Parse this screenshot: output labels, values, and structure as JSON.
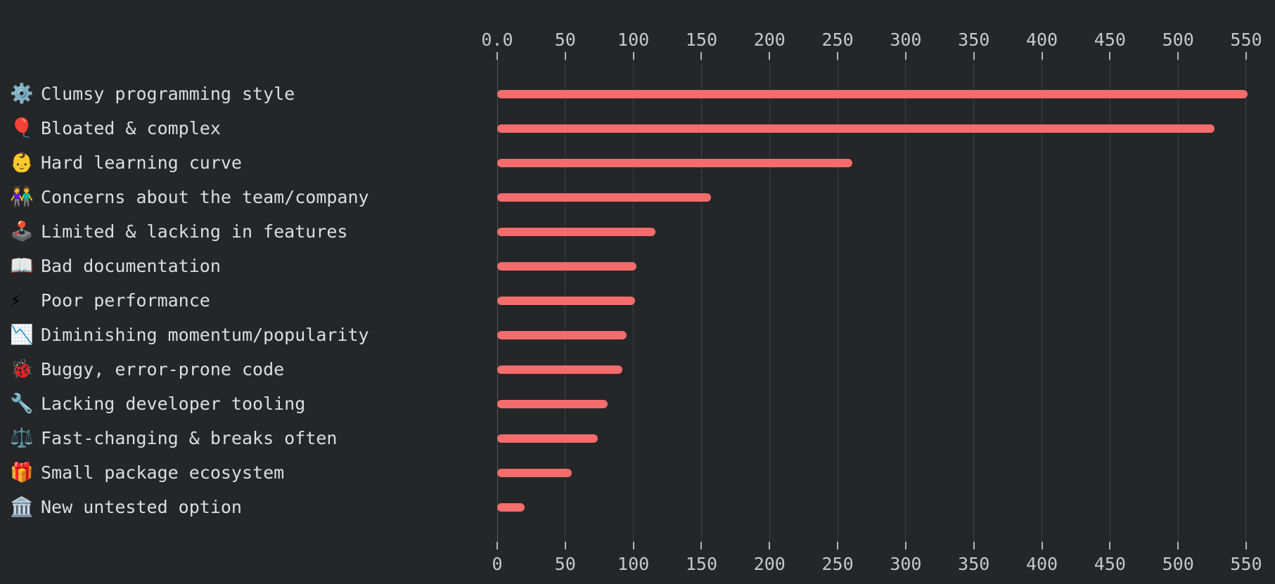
{
  "chart_data": {
    "type": "bar",
    "orientation": "horizontal",
    "title": "",
    "xlabel": "",
    "ylabel": "",
    "legend": "none",
    "grid": "vertical-gridlines-only",
    "xlim": [
      0,
      573
    ],
    "axis": {
      "tick_values": [
        0,
        50,
        100,
        150,
        200,
        250,
        300,
        350,
        400,
        450,
        500,
        550
      ],
      "top_labels": [
        "0.0",
        "50",
        "100",
        "150",
        "200",
        "250",
        "300",
        "350",
        "400",
        "450",
        "500",
        "550"
      ],
      "bottom_labels": [
        "0",
        "50",
        "100",
        "150",
        "200",
        "250",
        "300",
        "350",
        "400",
        "450",
        "500",
        "550"
      ]
    },
    "categories": [
      "Clumsy programming style",
      "Bloated & complex",
      "Hard learning curve",
      "Concerns about the team/company",
      "Limited & lacking in features",
      "Bad documentation",
      "Poor performance",
      "Diminishing momentum/popularity",
      "Buggy, error-prone code",
      "Lacking developer tooling",
      "Fast-changing & breaks often",
      "Small package ecosystem",
      "New untested option"
    ],
    "icons": [
      {
        "name": "gear-icon",
        "char": "⚙️"
      },
      {
        "name": "balloon-icon",
        "char": "🎈"
      },
      {
        "name": "baby-icon",
        "char": "👶"
      },
      {
        "name": "couple-icon",
        "char": "👫"
      },
      {
        "name": "joystick-icon",
        "char": "🕹️"
      },
      {
        "name": "open-book-icon",
        "char": "📖"
      },
      {
        "name": "lightning-icon",
        "char": "⚡"
      },
      {
        "name": "chart-decreasing-icon",
        "char": "📉"
      },
      {
        "name": "lady-beetle-icon",
        "char": "🐞"
      },
      {
        "name": "wrench-icon",
        "char": "🔧"
      },
      {
        "name": "balance-scale-icon",
        "char": "⚖️"
      },
      {
        "name": "gift-icon",
        "char": "🎁"
      },
      {
        "name": "classical-building-icon",
        "char": "🏛️"
      }
    ],
    "values": [
      551,
      527,
      261,
      157,
      116,
      102,
      101,
      95,
      92,
      81,
      74,
      55,
      20
    ],
    "colors": {
      "bar": "#f56c6c",
      "background": "#242628",
      "gridline": "#3d4043",
      "zero_gridline": "#55575b",
      "tick_mark": "#b4b6b9",
      "tick_label": "#c6c8cb",
      "category_label": "#dcdee0"
    }
  }
}
